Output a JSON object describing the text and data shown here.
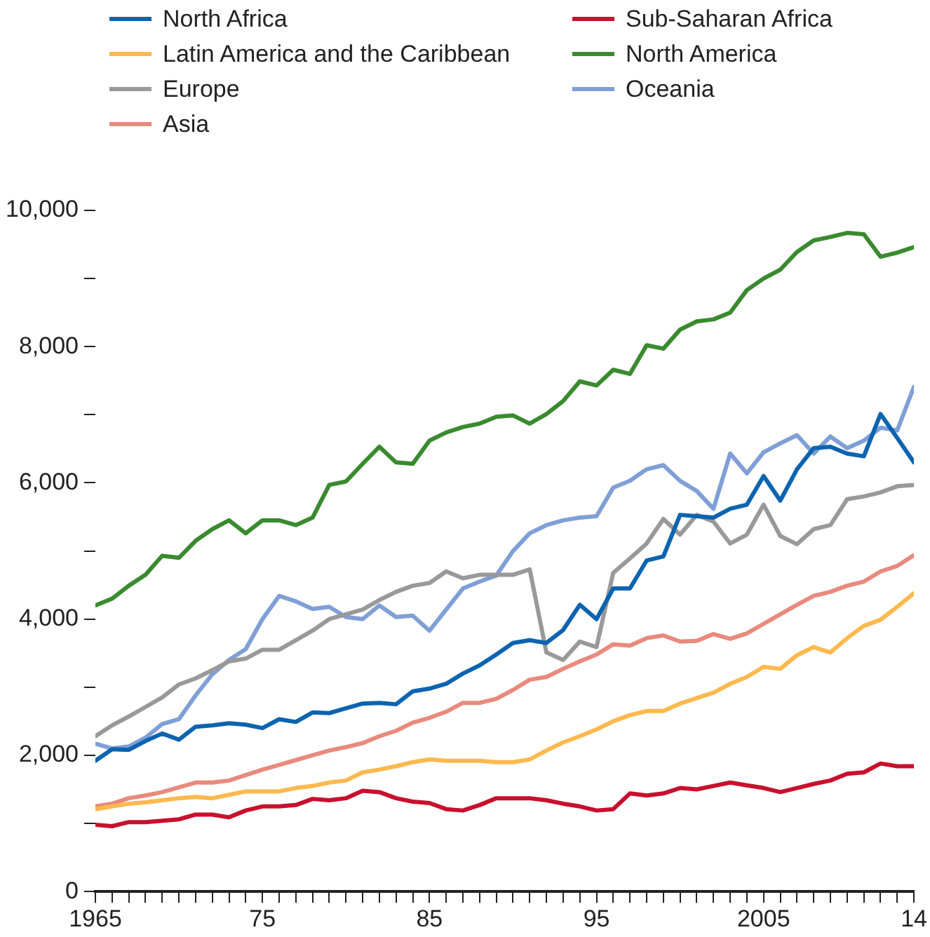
{
  "chart_data": {
    "type": "line",
    "x": [
      1965,
      1966,
      1967,
      1968,
      1969,
      1970,
      1971,
      1972,
      1973,
      1974,
      1975,
      1976,
      1977,
      1978,
      1979,
      1980,
      1981,
      1982,
      1983,
      1984,
      1985,
      1986,
      1987,
      1988,
      1989,
      1990,
      1991,
      1992,
      1993,
      1994,
      1995,
      1996,
      1997,
      1998,
      1999,
      2000,
      2001,
      2002,
      2003,
      2004,
      2005,
      2006,
      2007,
      2008,
      2009,
      2010,
      2011,
      2012,
      2013,
      2014
    ],
    "series": [
      {
        "name": "North Africa",
        "color": "#0c64b0",
        "values": [
          1920,
          2090,
          2080,
          2210,
          2320,
          2230,
          2420,
          2440,
          2470,
          2450,
          2400,
          2530,
          2490,
          2630,
          2620,
          2690,
          2760,
          2770,
          2750,
          2940,
          2980,
          3050,
          3200,
          3320,
          3480,
          3650,
          3690,
          3650,
          3840,
          4210,
          4000,
          4450,
          4450,
          4860,
          4920,
          5530,
          5510,
          5490,
          5620,
          5680,
          6100,
          5740,
          6200,
          6510,
          6530,
          6430,
          6390,
          7010,
          6660,
          6300
        ]
      },
      {
        "name": "Sub-Saharan Africa",
        "color": "#c8102e",
        "values": [
          980,
          960,
          1020,
          1020,
          1040,
          1060,
          1130,
          1130,
          1090,
          1190,
          1250,
          1250,
          1270,
          1360,
          1340,
          1370,
          1480,
          1460,
          1370,
          1320,
          1300,
          1210,
          1190,
          1270,
          1370,
          1370,
          1370,
          1340,
          1290,
          1250,
          1190,
          1210,
          1440,
          1410,
          1440,
          1520,
          1500,
          1550,
          1600,
          1560,
          1520,
          1460,
          1520,
          1580,
          1630,
          1730,
          1750,
          1880,
          1840,
          1840
        ]
      },
      {
        "name": "Latin America and the Caribbean",
        "color": "#fdb94e",
        "values": [
          1210,
          1250,
          1290,
          1310,
          1340,
          1370,
          1390,
          1370,
          1420,
          1470,
          1470,
          1470,
          1520,
          1550,
          1600,
          1630,
          1750,
          1790,
          1840,
          1900,
          1940,
          1920,
          1920,
          1920,
          1900,
          1900,
          1940,
          2070,
          2190,
          2280,
          2380,
          2500,
          2590,
          2650,
          2650,
          2760,
          2840,
          2920,
          3050,
          3150,
          3300,
          3270,
          3470,
          3590,
          3510,
          3720,
          3900,
          3990,
          4180,
          4380
        ]
      },
      {
        "name": "North America",
        "color": "#3a8a2f",
        "values": [
          4200,
          4300,
          4490,
          4650,
          4930,
          4900,
          5150,
          5320,
          5450,
          5260,
          5450,
          5450,
          5380,
          5490,
          5970,
          6020,
          6280,
          6530,
          6300,
          6280,
          6620,
          6740,
          6820,
          6870,
          6970,
          6990,
          6870,
          7010,
          7200,
          7490,
          7430,
          7660,
          7600,
          8020,
          7970,
          8250,
          8370,
          8400,
          8500,
          8830,
          9000,
          9130,
          9390,
          9560,
          9610,
          9670,
          9650,
          9320,
          9380,
          9460
        ]
      },
      {
        "name": "Europe",
        "color": "#999999",
        "values": [
          2280,
          2440,
          2570,
          2710,
          2850,
          3040,
          3130,
          3250,
          3380,
          3420,
          3550,
          3550,
          3690,
          3830,
          4000,
          4070,
          4140,
          4280,
          4400,
          4490,
          4530,
          4700,
          4600,
          4650,
          4650,
          4650,
          4730,
          3510,
          3400,
          3670,
          3590,
          4680,
          4890,
          5110,
          5470,
          5240,
          5530,
          5430,
          5110,
          5240,
          5680,
          5220,
          5100,
          5320,
          5380,
          5760,
          5800,
          5860,
          5950,
          5970
        ]
      },
      {
        "name": "Oceania",
        "color": "#7f9fd6",
        "values": [
          2170,
          2100,
          2130,
          2260,
          2460,
          2530,
          2880,
          3190,
          3400,
          3560,
          4000,
          4340,
          4260,
          4150,
          4180,
          4030,
          4000,
          4200,
          4030,
          4050,
          3830,
          4140,
          4450,
          4550,
          4640,
          5000,
          5260,
          5380,
          5450,
          5490,
          5510,
          5930,
          6030,
          6200,
          6260,
          6030,
          5880,
          5620,
          6430,
          6140,
          6450,
          6580,
          6700,
          6430,
          6680,
          6510,
          6620,
          6810,
          6770,
          7410
        ]
      },
      {
        "name": "Asia",
        "color": "#e88a7d",
        "values": [
          1250,
          1290,
          1370,
          1410,
          1460,
          1530,
          1600,
          1600,
          1630,
          1710,
          1790,
          1860,
          1930,
          2000,
          2070,
          2120,
          2180,
          2280,
          2360,
          2480,
          2550,
          2640,
          2770,
          2770,
          2830,
          2960,
          3110,
          3150,
          3270,
          3380,
          3480,
          3630,
          3610,
          3720,
          3760,
          3670,
          3680,
          3780,
          3710,
          3790,
          3930,
          4070,
          4210,
          4340,
          4400,
          4490,
          4550,
          4700,
          4780,
          4940
        ]
      }
    ],
    "xlim": [
      1965,
      2014
    ],
    "xticks": [
      {
        "value": 1965,
        "label": "1965"
      },
      {
        "value": 1966,
        "label": null
      },
      {
        "value": 1967,
        "label": null
      },
      {
        "value": 1968,
        "label": null
      },
      {
        "value": 1969,
        "label": null
      },
      {
        "value": 1970,
        "label": null
      },
      {
        "value": 1971,
        "label": null
      },
      {
        "value": 1972,
        "label": null
      },
      {
        "value": 1973,
        "label": null
      },
      {
        "value": 1974,
        "label": null
      },
      {
        "value": 1975,
        "label": "75"
      },
      {
        "value": 1976,
        "label": null
      },
      {
        "value": 1977,
        "label": null
      },
      {
        "value": 1978,
        "label": null
      },
      {
        "value": 1979,
        "label": null
      },
      {
        "value": 1980,
        "label": null
      },
      {
        "value": 1981,
        "label": null
      },
      {
        "value": 1982,
        "label": null
      },
      {
        "value": 1983,
        "label": null
      },
      {
        "value": 1984,
        "label": null
      },
      {
        "value": 1985,
        "label": "85"
      },
      {
        "value": 1986,
        "label": null
      },
      {
        "value": 1987,
        "label": null
      },
      {
        "value": 1988,
        "label": null
      },
      {
        "value": 1989,
        "label": null
      },
      {
        "value": 1990,
        "label": null
      },
      {
        "value": 1991,
        "label": null
      },
      {
        "value": 1992,
        "label": null
      },
      {
        "value": 1993,
        "label": null
      },
      {
        "value": 1994,
        "label": null
      },
      {
        "value": 1995,
        "label": "95"
      },
      {
        "value": 1996,
        "label": null
      },
      {
        "value": 1997,
        "label": null
      },
      {
        "value": 1998,
        "label": null
      },
      {
        "value": 1999,
        "label": null
      },
      {
        "value": 2000,
        "label": null
      },
      {
        "value": 2001,
        "label": null
      },
      {
        "value": 2002,
        "label": null
      },
      {
        "value": 2003,
        "label": null
      },
      {
        "value": 2004,
        "label": null
      },
      {
        "value": 2005,
        "label": "2005"
      },
      {
        "value": 2006,
        "label": null
      },
      {
        "value": 2007,
        "label": null
      },
      {
        "value": 2008,
        "label": null
      },
      {
        "value": 2009,
        "label": null
      },
      {
        "value": 2010,
        "label": null
      },
      {
        "value": 2011,
        "label": null
      },
      {
        "value": 2012,
        "label": null
      },
      {
        "value": 2013,
        "label": null
      },
      {
        "value": 2014,
        "label": "14"
      }
    ],
    "ylim": [
      0,
      10000
    ],
    "yticks": [
      0,
      {
        "value": 1000,
        "label": null
      },
      {
        "value": 2000,
        "label": "2,000"
      },
      {
        "value": 3000,
        "label": null
      },
      {
        "value": 4000,
        "label": "4,000"
      },
      {
        "value": 5000,
        "label": null
      },
      {
        "value": 6000,
        "label": "6,000"
      },
      {
        "value": 7000,
        "label": null
      },
      {
        "value": 8000,
        "label": "8,000"
      },
      {
        "value": 9000,
        "label": null
      },
      {
        "value": 10000,
        "label": "10,000"
      }
    ],
    "grid": false,
    "legend": "top",
    "marker": "none",
    "line_style": "solid"
  }
}
